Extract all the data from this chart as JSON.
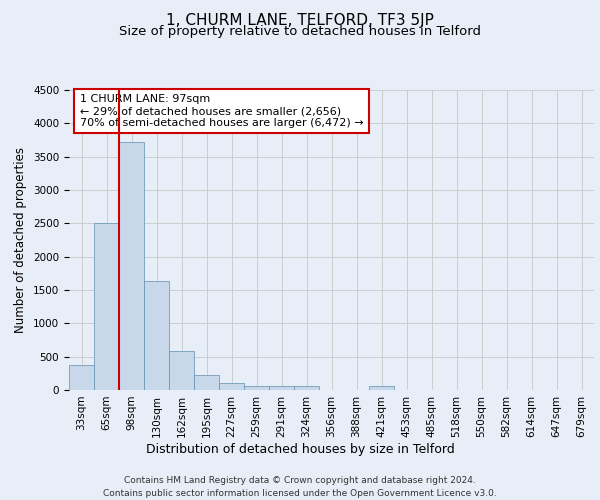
{
  "title": "1, CHURM LANE, TELFORD, TF3 5JP",
  "subtitle": "Size of property relative to detached houses in Telford",
  "xlabel": "Distribution of detached houses by size in Telford",
  "ylabel": "Number of detached properties",
  "categories": [
    "33sqm",
    "65sqm",
    "98sqm",
    "130sqm",
    "162sqm",
    "195sqm",
    "227sqm",
    "259sqm",
    "291sqm",
    "324sqm",
    "356sqm",
    "388sqm",
    "421sqm",
    "453sqm",
    "485sqm",
    "518sqm",
    "550sqm",
    "582sqm",
    "614sqm",
    "647sqm",
    "679sqm"
  ],
  "values": [
    370,
    2500,
    3720,
    1630,
    590,
    220,
    110,
    65,
    55,
    55,
    0,
    0,
    65,
    0,
    0,
    0,
    0,
    0,
    0,
    0,
    0
  ],
  "bar_color": "#c8d8ea",
  "bar_edgecolor": "#6090b0",
  "vline_color": "#cc0000",
  "vline_x_index": 2,
  "annotation_text": "1 CHURM LANE: 97sqm\n← 29% of detached houses are smaller (2,656)\n70% of semi-detached houses are larger (6,472) →",
  "annotation_box_facecolor": "#ffffff",
  "annotation_box_edgecolor": "#cc0000",
  "ylim": [
    0,
    4500
  ],
  "yticks": [
    0,
    500,
    1000,
    1500,
    2000,
    2500,
    3000,
    3500,
    4000,
    4500
  ],
  "grid_color": "#cccccc",
  "bg_color": "#e8eef8",
  "footer": "Contains HM Land Registry data © Crown copyright and database right 2024.\nContains public sector information licensed under the Open Government Licence v3.0.",
  "title_fontsize": 11,
  "subtitle_fontsize": 9.5,
  "xlabel_fontsize": 9,
  "ylabel_fontsize": 8.5,
  "tick_fontsize": 7.5,
  "annotation_fontsize": 8,
  "footer_fontsize": 6.5
}
